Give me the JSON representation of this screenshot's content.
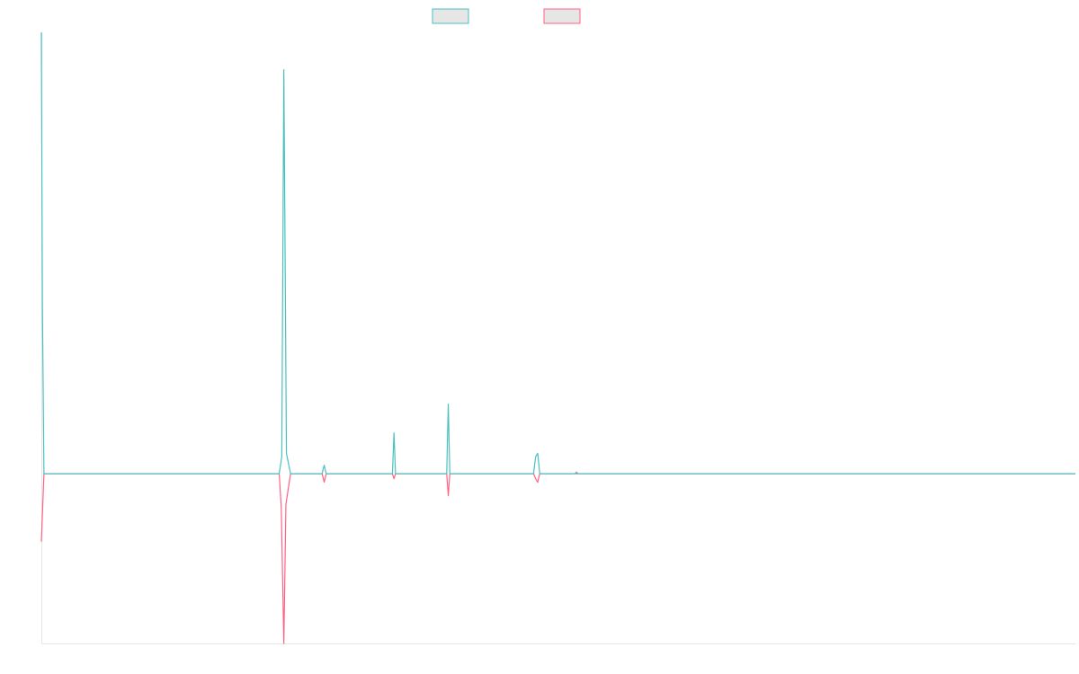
{
  "colors": {
    "series_a": "#4bc0c0",
    "series_b": "#ff6384",
    "legend_fill": "#e6e6e6",
    "axis": "#e5e5e5"
  },
  "chart_data": {
    "type": "line",
    "title": "",
    "xlabel": "",
    "ylabel": "",
    "grid": false,
    "legend_position": "top-center",
    "xlim": [
      0,
      200
    ],
    "ylim": [
      -1,
      2.6
    ],
    "series": [
      {
        "color": "#4bc0c0",
        "points": [
          [
            0,
            2.6
          ],
          [
            0.2,
            1.0
          ],
          [
            0.5,
            0
          ],
          [
            46,
            0
          ],
          [
            46.5,
            0.1
          ],
          [
            46.9,
            2.38
          ],
          [
            47.4,
            0.12
          ],
          [
            48.2,
            0
          ],
          [
            54.3,
            0
          ],
          [
            54.7,
            0.05
          ],
          [
            55.1,
            0
          ],
          [
            67.9,
            0
          ],
          [
            68.2,
            0.24
          ],
          [
            68.5,
            0
          ],
          [
            78.4,
            0
          ],
          [
            78.7,
            0.41
          ],
          [
            79.0,
            0
          ],
          [
            95.2,
            0
          ],
          [
            95.6,
            0.1
          ],
          [
            96.0,
            0.12
          ],
          [
            96.4,
            0
          ],
          [
            103.2,
            0
          ],
          [
            103.5,
            0.01
          ],
          [
            103.8,
            0
          ],
          [
            200,
            0
          ]
        ]
      },
      {
        "color": "#ff6384",
        "points": [
          [
            0,
            -0.4
          ],
          [
            0.5,
            0
          ],
          [
            46,
            0
          ],
          [
            46.4,
            -0.2
          ],
          [
            46.9,
            -1.0
          ],
          [
            47.3,
            -0.18
          ],
          [
            48.2,
            0
          ],
          [
            54.3,
            0
          ],
          [
            54.7,
            -0.05
          ],
          [
            55.1,
            0
          ],
          [
            67.9,
            0
          ],
          [
            68.2,
            -0.03
          ],
          [
            68.5,
            0
          ],
          [
            78.4,
            0
          ],
          [
            78.7,
            -0.13
          ],
          [
            79.0,
            0
          ],
          [
            95.2,
            0
          ],
          [
            95.6,
            -0.03
          ],
          [
            96.0,
            -0.05
          ],
          [
            96.4,
            0
          ],
          [
            200,
            0
          ]
        ]
      }
    ]
  }
}
